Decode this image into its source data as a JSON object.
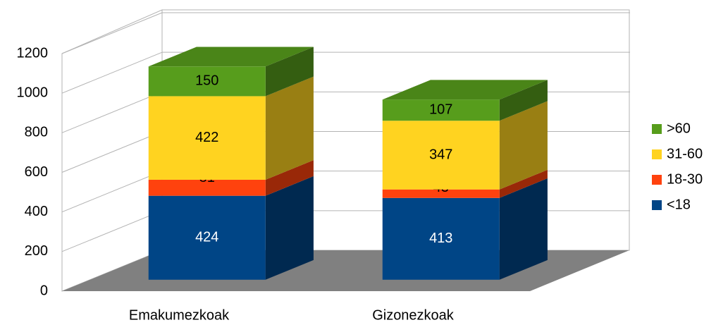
{
  "chart_data": {
    "type": "bar3d_stacked",
    "categories": [
      "Emakumezkoak",
      "Gizonezkoak"
    ],
    "series": [
      {
        "name": "<18",
        "color": "#004586",
        "values": [
          424,
          413
        ]
      },
      {
        "name": "18-30",
        "color": "#ff420e",
        "values": [
          81,
          43
        ]
      },
      {
        "name": "31-60",
        "color": "#ffd320",
        "values": [
          422,
          347
        ]
      },
      {
        "name": ">60",
        "color": "#579d1c",
        "values": [
          150,
          107
        ]
      }
    ],
    "ylim": [
      0,
      1200
    ],
    "yticks": [
      0,
      200,
      400,
      600,
      800,
      1000,
      1200
    ],
    "grid": true,
    "legend": "right"
  }
}
